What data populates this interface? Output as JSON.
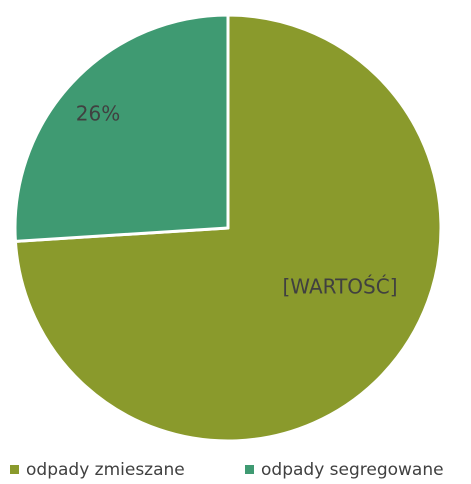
{
  "chart_data": {
    "type": "pie",
    "categories": [
      "odpady zmieszane",
      "odpady segregowane"
    ],
    "values": [
      74,
      26
    ],
    "value_labels": [
      "[WARTOŚĆ]",
      "26%"
    ],
    "colors": [
      "#8a9a2c",
      "#3f9a72"
    ],
    "legend": "bottom"
  }
}
